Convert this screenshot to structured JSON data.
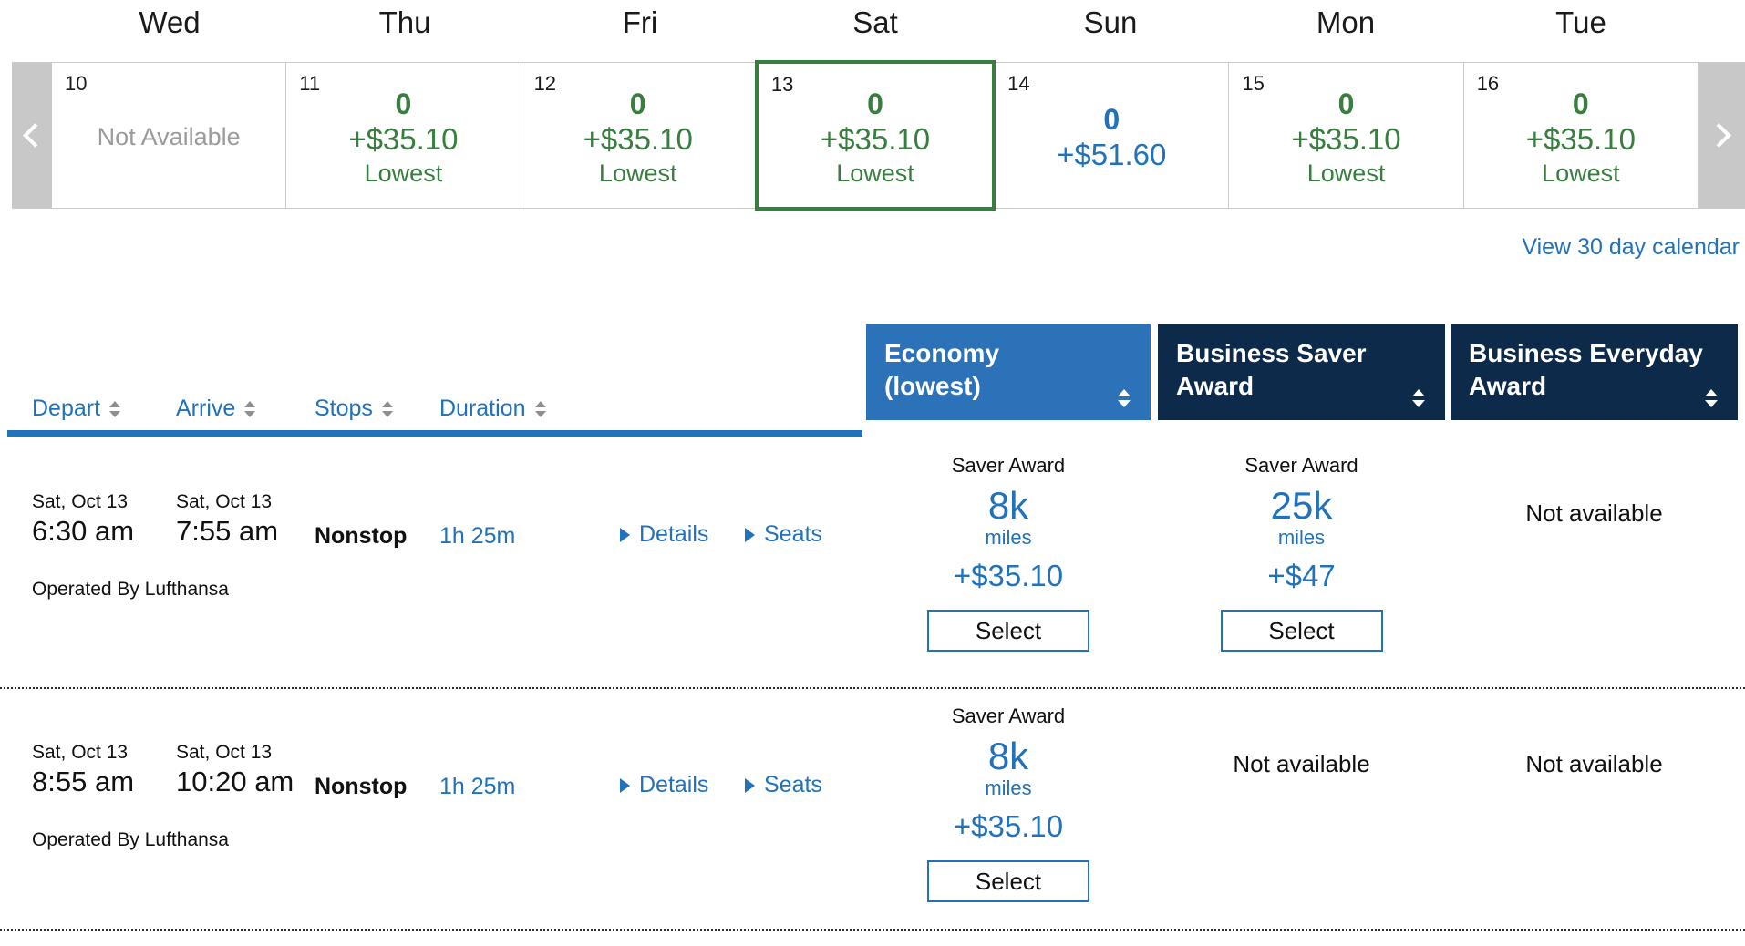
{
  "calendar": {
    "days": [
      {
        "name": "Wed",
        "date": "10",
        "tone": "na",
        "not_available": "Not Available"
      },
      {
        "name": "Thu",
        "date": "11",
        "tone": "green",
        "count": "0",
        "price": "+$35.10",
        "note": "Lowest"
      },
      {
        "name": "Fri",
        "date": "12",
        "tone": "green",
        "count": "0",
        "price": "+$35.10",
        "note": "Lowest"
      },
      {
        "name": "Sat",
        "date": "13",
        "tone": "green",
        "selected": true,
        "count": "0",
        "price": "+$35.10",
        "note": "Lowest"
      },
      {
        "name": "Sun",
        "date": "14",
        "tone": "blue",
        "count": "0",
        "price": "+$51.60"
      },
      {
        "name": "Mon",
        "date": "15",
        "tone": "green",
        "count": "0",
        "price": "+$35.10",
        "note": "Lowest"
      },
      {
        "name": "Tue",
        "date": "16",
        "tone": "green",
        "count": "0",
        "price": "+$35.10",
        "note": "Lowest"
      }
    ],
    "view_link": "View 30 day calendar"
  },
  "results": {
    "sort_columns": [
      {
        "label": "Depart"
      },
      {
        "label": "Arrive"
      },
      {
        "label": "Stops"
      },
      {
        "label": "Duration"
      }
    ],
    "fare_columns": [
      {
        "line1": "Economy",
        "line2": "(lowest)"
      },
      {
        "line1": "Business Saver",
        "line2": "Award"
      },
      {
        "line1": "Business Everyday",
        "line2": "Award"
      }
    ],
    "rows": [
      {
        "depart": {
          "date": "Sat, Oct 13",
          "time": "6:30 am"
        },
        "arrive": {
          "date": "Sat, Oct 13",
          "time": "7:55 am"
        },
        "stops": "Nonstop",
        "duration": "1h 25m",
        "details_link": "Details",
        "seats_link": "Seats",
        "operated_by": "Operated By Lufthansa",
        "fares": {
          "economy": {
            "award_label": "Saver Award",
            "miles": "8k",
            "miles_unit": "miles",
            "fee": "+$35.10",
            "select_label": "Select"
          },
          "business_saver": {
            "award_label": "Saver Award",
            "miles": "25k",
            "miles_unit": "miles",
            "fee": "+$47",
            "select_label": "Select"
          },
          "business_everyday": {
            "not_available": "Not available"
          }
        }
      },
      {
        "depart": {
          "date": "Sat, Oct 13",
          "time": "8:55 am"
        },
        "arrive": {
          "date": "Sat, Oct 13",
          "time": "10:20 am"
        },
        "stops": "Nonstop",
        "duration": "1h 25m",
        "details_link": "Details",
        "seats_link": "Seats",
        "operated_by": "Operated By Lufthansa",
        "fares": {
          "economy": {
            "award_label": "Saver Award",
            "miles": "8k",
            "miles_unit": "miles",
            "fee": "+$35.10",
            "select_label": "Select"
          },
          "business_saver": {
            "not_available": "Not available"
          },
          "business_everyday": {
            "not_available": "Not available"
          }
        }
      }
    ]
  },
  "colors": {
    "accent_blue": "#2172ba",
    "economy_header_blue": "#2b72b8",
    "business_header_navy": "#0d2a4a",
    "available_green": "#377e3f"
  }
}
